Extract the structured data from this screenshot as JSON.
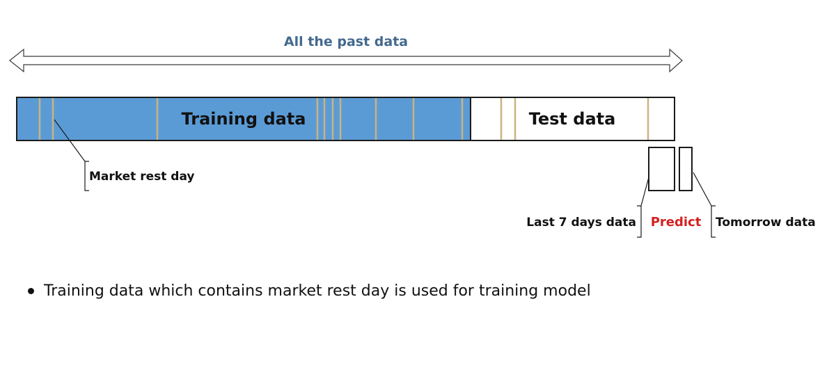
{
  "labels": {
    "past_data": "All the past data",
    "training": "Training data",
    "test": "Test data",
    "market_rest_day": "Market rest day",
    "last_7_days": "Last 7 days data",
    "predict": "Predict",
    "tomorrow": "Tomorrow data"
  },
  "bullets": [
    "Training data which contains market rest day is used for training model"
  ],
  "colors": {
    "training_fill": "#5b9bd5",
    "rest_day_line": "#c9b382",
    "past_data_label": "#44698e",
    "predict_label": "#d42020",
    "outline": "#1a1a1a"
  }
}
